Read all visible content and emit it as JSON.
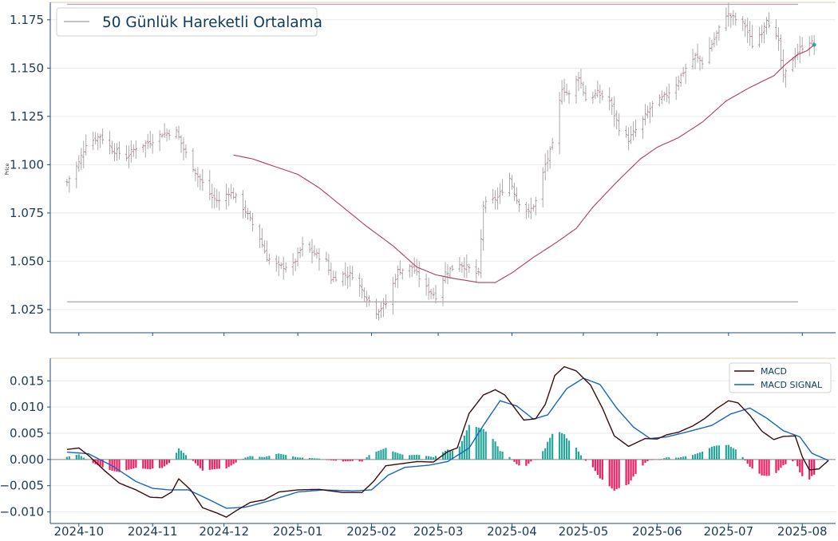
{
  "chart_data": [
    {
      "type": "ohlc",
      "title": "",
      "ylabel": "Price",
      "ylim": [
        1.013,
        1.184
      ],
      "yticks": [
        "1.025",
        "1.050",
        "1.075",
        "1.100",
        "1.125",
        "1.150",
        "1.175"
      ],
      "ytick_values": [
        1.025,
        1.05,
        1.075,
        1.1,
        1.125,
        1.15,
        1.175
      ],
      "grid": true,
      "legend": {
        "position": "top-left",
        "entries": [
          "50 Günlük Hareketli Ortalama"
        ]
      },
      "reference_lines": {
        "high": 1.183,
        "low": 1.029
      },
      "close_anchors": [
        [
          "2024-09-26",
          1.091
        ],
        [
          "2024-10-01",
          1.101
        ],
        [
          "2024-10-04",
          1.111
        ],
        [
          "2024-10-10",
          1.115
        ],
        [
          "2024-10-15",
          1.108
        ],
        [
          "2024-10-21",
          1.104
        ],
        [
          "2024-10-25",
          1.109
        ],
        [
          "2024-10-31",
          1.112
        ],
        [
          "2024-11-05",
          1.116
        ],
        [
          "2024-11-11",
          1.117
        ],
        [
          "2024-11-14",
          1.108
        ],
        [
          "2024-11-20",
          1.094
        ],
        [
          "2024-11-26",
          1.083
        ],
        [
          "2024-11-29",
          1.081
        ],
        [
          "2024-12-03",
          1.086
        ],
        [
          "2024-12-06",
          1.083
        ],
        [
          "2024-12-10",
          1.076
        ],
        [
          "2024-12-16",
          1.062
        ],
        [
          "2024-12-19",
          1.052
        ],
        [
          "2024-12-24",
          1.047
        ],
        [
          "2024-12-30",
          1.048
        ],
        [
          "2025-01-03",
          1.058
        ],
        [
          "2025-01-08",
          1.054
        ],
        [
          "2025-01-13",
          1.05
        ],
        [
          "2025-01-15",
          1.041
        ],
        [
          "2025-01-20",
          1.043
        ],
        [
          "2025-01-24",
          1.043
        ],
        [
          "2025-01-28",
          1.035
        ],
        [
          "2025-02-03",
          1.024
        ],
        [
          "2025-02-07",
          1.028
        ],
        [
          "2025-02-12",
          1.045
        ],
        [
          "2025-02-18",
          1.047
        ],
        [
          "2025-02-24",
          1.036
        ],
        [
          "2025-02-28",
          1.032
        ],
        [
          "2025-03-04",
          1.044
        ],
        [
          "2025-03-10",
          1.049
        ],
        [
          "2025-03-14",
          1.046
        ],
        [
          "2025-03-18",
          1.043
        ],
        [
          "2025-03-20",
          1.079
        ],
        [
          "2025-03-26",
          1.083
        ],
        [
          "2025-03-31",
          1.093
        ],
        [
          "2025-04-03",
          1.082
        ],
        [
          "2025-04-08",
          1.075
        ],
        [
          "2025-04-11",
          1.081
        ],
        [
          "2025-04-15",
          1.1
        ],
        [
          "2025-04-18",
          1.11
        ],
        [
          "2025-04-22",
          1.14
        ],
        [
          "2025-04-25",
          1.136
        ],
        [
          "2025-04-29",
          1.146
        ],
        [
          "2025-05-02",
          1.134
        ],
        [
          "2025-05-07",
          1.137
        ],
        [
          "2025-05-12",
          1.133
        ],
        [
          "2025-05-16",
          1.119
        ],
        [
          "2025-05-20",
          1.113
        ],
        [
          "2025-05-26",
          1.123
        ],
        [
          "2025-05-30",
          1.131
        ],
        [
          "2025-06-04",
          1.135
        ],
        [
          "2025-06-09",
          1.142
        ],
        [
          "2025-06-13",
          1.15
        ],
        [
          "2025-06-17",
          1.156
        ],
        [
          "2025-06-20",
          1.153
        ],
        [
          "2025-06-25",
          1.165
        ],
        [
          "2025-06-30",
          1.178
        ],
        [
          "2025-07-03",
          1.176
        ],
        [
          "2025-07-08",
          1.172
        ],
        [
          "2025-07-11",
          1.162
        ],
        [
          "2025-07-15",
          1.169
        ],
        [
          "2025-07-17",
          1.176
        ],
        [
          "2025-07-22",
          1.163
        ],
        [
          "2025-07-24",
          1.145
        ],
        [
          "2025-07-28",
          1.155
        ],
        [
          "2025-07-31",
          1.16
        ],
        [
          "2025-08-04",
          1.164
        ],
        [
          "2025-08-06",
          1.162
        ]
      ],
      "ma50_anchors": [
        [
          "2024-12-05",
          1.105
        ],
        [
          "2024-12-13",
          1.103
        ],
        [
          "2024-12-20",
          1.1
        ],
        [
          "2025-01-01",
          1.095
        ],
        [
          "2025-01-10",
          1.088
        ],
        [
          "2025-01-20",
          1.078
        ],
        [
          "2025-01-30",
          1.068
        ],
        [
          "2025-02-10",
          1.058
        ],
        [
          "2025-02-20",
          1.047
        ],
        [
          "2025-02-28",
          1.043
        ],
        [
          "2025-03-08",
          1.041
        ],
        [
          "2025-03-18",
          1.039
        ],
        [
          "2025-03-25",
          1.039
        ],
        [
          "2025-04-01",
          1.044
        ],
        [
          "2025-04-10",
          1.052
        ],
        [
          "2025-04-20",
          1.06
        ],
        [
          "2025-04-28",
          1.067
        ],
        [
          "2025-05-05",
          1.078
        ],
        [
          "2025-05-15",
          1.091
        ],
        [
          "2025-05-25",
          1.103
        ],
        [
          "2025-06-01",
          1.109
        ],
        [
          "2025-06-10",
          1.114
        ],
        [
          "2025-06-20",
          1.122
        ],
        [
          "2025-06-30",
          1.133
        ],
        [
          "2025-07-10",
          1.14
        ],
        [
          "2025-07-20",
          1.146
        ],
        [
          "2025-07-25",
          1.152
        ],
        [
          "2025-07-30",
          1.157
        ],
        [
          "2025-08-03",
          1.159
        ],
        [
          "2025-08-06",
          1.162
        ]
      ],
      "colors": {
        "bar": "#aaaaaa",
        "bar_tick": "#c0768a",
        "ma": "#b23a5e",
        "ref_line": "#bbaaad",
        "last_point": "#26a69a"
      }
    },
    {
      "type": "macd",
      "ylim": [
        -0.0122,
        0.0193
      ],
      "yticks": [
        "−0.010",
        "−0.005",
        "0.000",
        "0.005",
        "0.010",
        "0.015"
      ],
      "ytick_values": [
        -0.01,
        -0.005,
        0.0,
        0.005,
        0.01,
        0.015
      ],
      "legend": {
        "position": "top-right",
        "entries": [
          "MACD",
          "MACD SIGNAL"
        ]
      },
      "macd_anchors": [
        [
          "2024-09-26",
          0.0019
        ],
        [
          "2024-10-01",
          0.0022
        ],
        [
          "2024-10-05",
          0.0008
        ],
        [
          "2024-10-12",
          -0.0022
        ],
        [
          "2024-10-18",
          -0.0045
        ],
        [
          "2024-10-25",
          -0.0058
        ],
        [
          "2024-10-31",
          -0.0072
        ],
        [
          "2024-11-05",
          -0.0073
        ],
        [
          "2024-11-09",
          -0.0062
        ],
        [
          "2024-11-12",
          -0.0037
        ],
        [
          "2024-11-17",
          -0.0058
        ],
        [
          "2024-11-22",
          -0.0092
        ],
        [
          "2024-11-28",
          -0.0102
        ],
        [
          "2024-12-02",
          -0.011
        ],
        [
          "2024-12-06",
          -0.0098
        ],
        [
          "2024-12-12",
          -0.0082
        ],
        [
          "2024-12-18",
          -0.0077
        ],
        [
          "2024-12-24",
          -0.0062
        ],
        [
          "2025-01-01",
          -0.0058
        ],
        [
          "2025-01-10",
          -0.0057
        ],
        [
          "2025-01-20",
          -0.0063
        ],
        [
          "2025-01-28",
          -0.0063
        ],
        [
          "2025-02-02",
          -0.0041
        ],
        [
          "2025-02-07",
          -0.0012
        ],
        [
          "2025-02-12",
          -0.0009
        ],
        [
          "2025-02-20",
          -0.0004
        ],
        [
          "2025-02-27",
          -0.0005
        ],
        [
          "2025-03-05",
          0.0015
        ],
        [
          "2025-03-09",
          0.0022
        ],
        [
          "2025-03-14",
          0.0088
        ],
        [
          "2025-03-20",
          0.0123
        ],
        [
          "2025-03-25",
          0.0133
        ],
        [
          "2025-03-29",
          0.0123
        ],
        [
          "2025-04-02",
          0.0099
        ],
        [
          "2025-04-06",
          0.0075
        ],
        [
          "2025-04-11",
          0.0078
        ],
        [
          "2025-04-15",
          0.0105
        ],
        [
          "2025-04-19",
          0.016
        ],
        [
          "2025-04-23",
          0.0177
        ],
        [
          "2025-04-28",
          0.0169
        ],
        [
          "2025-05-04",
          0.0142
        ],
        [
          "2025-05-09",
          0.0098
        ],
        [
          "2025-05-14",
          0.0045
        ],
        [
          "2025-05-20",
          0.0025
        ],
        [
          "2025-05-27",
          0.004
        ],
        [
          "2025-06-01",
          0.0039
        ],
        [
          "2025-06-05",
          0.0047
        ],
        [
          "2025-06-10",
          0.0052
        ],
        [
          "2025-06-16",
          0.0064
        ],
        [
          "2025-06-21",
          0.0078
        ],
        [
          "2025-06-26",
          0.0097
        ],
        [
          "2025-07-01",
          0.0112
        ],
        [
          "2025-07-05",
          0.0108
        ],
        [
          "2025-07-10",
          0.0084
        ],
        [
          "2025-07-15",
          0.0054
        ],
        [
          "2025-07-20",
          0.0038
        ],
        [
          "2025-07-24",
          0.0044
        ],
        [
          "2025-07-29",
          0.0045
        ],
        [
          "2025-08-01",
          0.0005
        ],
        [
          "2025-08-04",
          -0.002
        ],
        [
          "2025-08-08",
          -0.0018
        ],
        [
          "2025-08-12",
          -0.0002
        ]
      ],
      "signal_anchors": [
        [
          "2024-09-26",
          0.0014
        ],
        [
          "2024-10-05",
          0.0011
        ],
        [
          "2024-10-15",
          -0.0012
        ],
        [
          "2024-10-25",
          -0.0042
        ],
        [
          "2024-11-01",
          -0.0055
        ],
        [
          "2024-11-08",
          -0.0058
        ],
        [
          "2024-11-16",
          -0.0058
        ],
        [
          "2024-11-24",
          -0.0075
        ],
        [
          "2024-12-02",
          -0.0093
        ],
        [
          "2024-12-10",
          -0.0091
        ],
        [
          "2024-12-20",
          -0.0079
        ],
        [
          "2025-01-01",
          -0.0062
        ],
        [
          "2025-01-12",
          -0.0058
        ],
        [
          "2025-01-24",
          -0.006
        ],
        [
          "2025-02-01",
          -0.0058
        ],
        [
          "2025-02-08",
          -0.003
        ],
        [
          "2025-02-15",
          -0.0015
        ],
        [
          "2025-02-25",
          -0.0011
        ],
        [
          "2025-03-05",
          -0.0004
        ],
        [
          "2025-03-14",
          0.0022
        ],
        [
          "2025-03-20",
          0.0065
        ],
        [
          "2025-03-27",
          0.0112
        ],
        [
          "2025-04-03",
          0.0102
        ],
        [
          "2025-04-10",
          0.0077
        ],
        [
          "2025-04-16",
          0.0085
        ],
        [
          "2025-04-24",
          0.0135
        ],
        [
          "2025-05-01",
          0.0155
        ],
        [
          "2025-05-08",
          0.0143
        ],
        [
          "2025-05-15",
          0.0098
        ],
        [
          "2025-05-22",
          0.0062
        ],
        [
          "2025-05-29",
          0.004
        ],
        [
          "2025-06-05",
          0.0043
        ],
        [
          "2025-06-14",
          0.0053
        ],
        [
          "2025-06-24",
          0.0065
        ],
        [
          "2025-07-02",
          0.0087
        ],
        [
          "2025-07-10",
          0.0098
        ],
        [
          "2025-07-17",
          0.0079
        ],
        [
          "2025-07-24",
          0.0055
        ],
        [
          "2025-07-31",
          0.0043
        ],
        [
          "2025-08-05",
          0.0012
        ],
        [
          "2025-08-12",
          -0.0002
        ]
      ],
      "colors": {
        "macd": "#3c0a0a",
        "signal": "#1565c0",
        "hist_pos": "#26a69a",
        "hist_neg": "#e91e63",
        "zero": "#888888"
      }
    }
  ],
  "x_axis": {
    "ticks": [
      "2024-10",
      "2024-11",
      "2024-12",
      "2025-01",
      "2025-02",
      "2025-03",
      "2025-04",
      "2025-05",
      "2025-06",
      "2025-07",
      "2025-08"
    ],
    "range": [
      "2024-09-19",
      "2025-08-15"
    ]
  },
  "colors": {
    "axis": "#1f4e79",
    "tick_text": "#1a3a5c",
    "grid": "#e9e9e9",
    "top_border": "#e0cfa0"
  }
}
